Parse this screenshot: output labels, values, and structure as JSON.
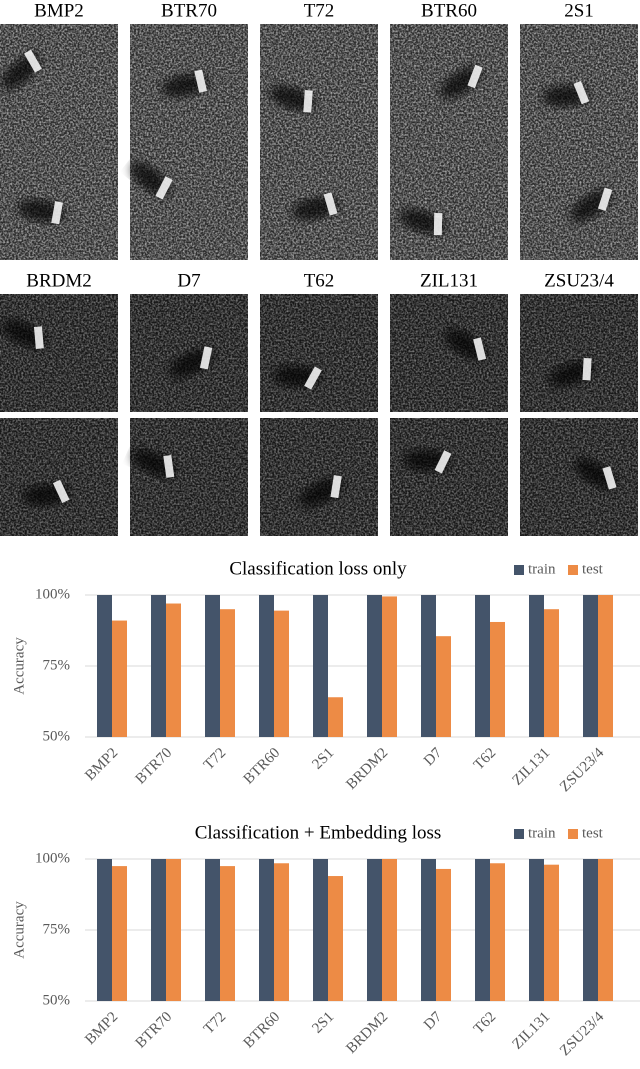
{
  "image_grid": {
    "labels": [
      "BMP2",
      "BTR70",
      "T72",
      "BTR60",
      "2S1",
      "BRDM2",
      "D7",
      "T62",
      "ZIL131",
      "ZSU23/4"
    ]
  },
  "chart_data": [
    {
      "type": "bar",
      "title": "Classification loss only",
      "y_label": "Accuracy",
      "categories": [
        "BMP2",
        "BTR70",
        "T72",
        "BTR60",
        "2S1",
        "BRDM2",
        "D7",
        "T62",
        "ZIL131",
        "ZSU23/4"
      ],
      "series": [
        {
          "name": "train",
          "color": "#44546a",
          "values": [
            100,
            100,
            100,
            100,
            100,
            100,
            100,
            100,
            100,
            100
          ]
        },
        {
          "name": "test",
          "color": "#ed8b45",
          "values": [
            91,
            97,
            95,
            94.5,
            64,
            99.5,
            85.5,
            90.5,
            95,
            100
          ]
        }
      ],
      "ylim": [
        50,
        100
      ],
      "yticks": [
        {
          "value": 50,
          "label": "50%"
        },
        {
          "value": 75,
          "label": "75%"
        },
        {
          "value": 100,
          "label": "100%"
        }
      ],
      "grid": true,
      "legend": "top-right"
    },
    {
      "type": "bar",
      "title": "Classification + Embedding loss",
      "y_label": "Accuracy",
      "categories": [
        "BMP2",
        "BTR70",
        "T72",
        "BTR60",
        "2S1",
        "BRDM2",
        "D7",
        "T62",
        "ZIL131",
        "ZSU23/4"
      ],
      "series": [
        {
          "name": "train",
          "color": "#44546a",
          "values": [
            100,
            100,
            100,
            100,
            100,
            100,
            100,
            100,
            100,
            100
          ]
        },
        {
          "name": "test",
          "color": "#ed8b45",
          "values": [
            97.5,
            100,
            97.5,
            98.5,
            94,
            100,
            96.5,
            98.5,
            98,
            100
          ]
        }
      ],
      "ylim": [
        50,
        100
      ],
      "yticks": [
        {
          "value": 50,
          "label": "50%"
        },
        {
          "value": 75,
          "label": "75%"
        },
        {
          "value": 100,
          "label": "100%"
        }
      ],
      "grid": true,
      "legend": "top-right"
    }
  ]
}
